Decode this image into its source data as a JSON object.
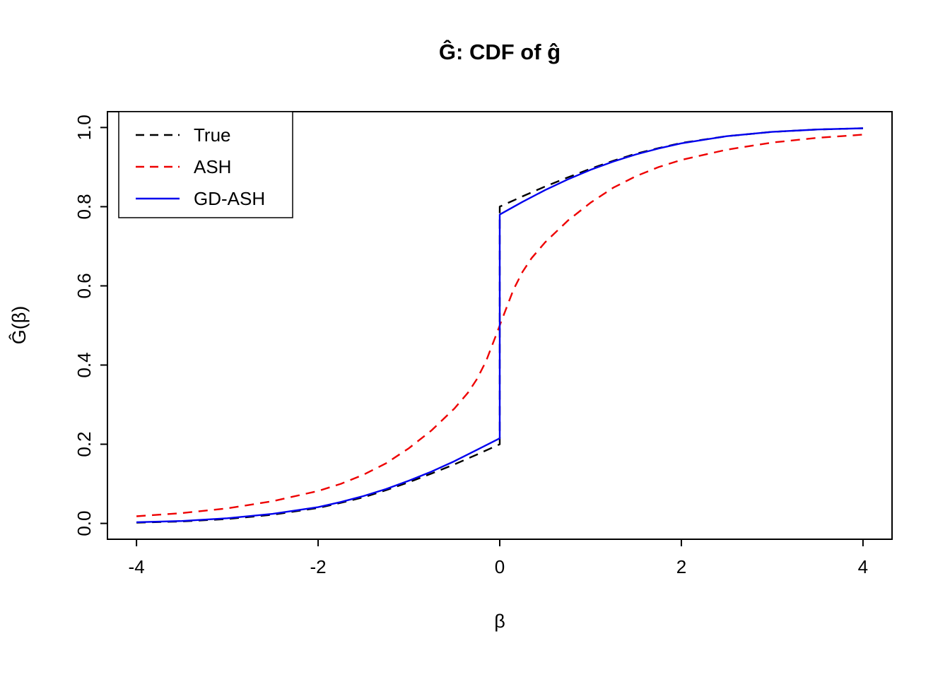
{
  "chart_data": {
    "type": "line",
    "title": "Ĝ: CDF of ĝ",
    "xlabel": "β",
    "ylabel": "Ĝ(β)",
    "xlim": [
      -4,
      4
    ],
    "ylim": [
      0,
      1
    ],
    "xticks": [
      -4,
      -2,
      0,
      2,
      4
    ],
    "xtick_labels": [
      "-4",
      "-2",
      "0",
      "2",
      "4"
    ],
    "yticks": [
      0.0,
      0.2,
      0.4,
      0.6,
      0.8,
      1.0
    ],
    "ytick_labels": [
      "0.0",
      "0.2",
      "0.4",
      "0.6",
      "0.8",
      "1.0"
    ],
    "grid": false,
    "legend_position": "top-left",
    "background_color": "#ffffff",
    "frame_color": "#000000",
    "series": [
      {
        "name": "True",
        "color": "#000000",
        "style": "dashed",
        "points": [
          [
            -4,
            0.002
          ],
          [
            -3.5,
            0.005
          ],
          [
            -3,
            0.011
          ],
          [
            -2.5,
            0.022
          ],
          [
            -2,
            0.039
          ],
          [
            -1.75,
            0.052
          ],
          [
            -1.5,
            0.066
          ],
          [
            -1.25,
            0.084
          ],
          [
            -1,
            0.104
          ],
          [
            -0.75,
            0.126
          ],
          [
            -0.5,
            0.149
          ],
          [
            -0.25,
            0.174
          ],
          [
            0,
            0.2
          ],
          [
            0,
            0.8
          ],
          [
            0.25,
            0.826
          ],
          [
            0.5,
            0.851
          ],
          [
            0.75,
            0.874
          ],
          [
            1,
            0.896
          ],
          [
            1.25,
            0.916
          ],
          [
            1.5,
            0.934
          ],
          [
            1.75,
            0.948
          ],
          [
            2,
            0.961
          ],
          [
            2.5,
            0.978
          ],
          [
            3,
            0.989
          ],
          [
            3.5,
            0.995
          ],
          [
            4,
            0.998
          ]
        ]
      },
      {
        "name": "ASH",
        "color": "#ee0000",
        "style": "dashed",
        "points": [
          [
            -4,
            0.018
          ],
          [
            -3.5,
            0.026
          ],
          [
            -3,
            0.038
          ],
          [
            -2.5,
            0.056
          ],
          [
            -2,
            0.082
          ],
          [
            -1.75,
            0.1
          ],
          [
            -1.5,
            0.123
          ],
          [
            -1.25,
            0.152
          ],
          [
            -1,
            0.19
          ],
          [
            -0.75,
            0.235
          ],
          [
            -0.5,
            0.29
          ],
          [
            -0.35,
            0.33
          ],
          [
            -0.25,
            0.365
          ],
          [
            -0.15,
            0.41
          ],
          [
            -0.05,
            0.47
          ],
          [
            0,
            0.5
          ],
          [
            0.05,
            0.53
          ],
          [
            0.15,
            0.59
          ],
          [
            0.25,
            0.635
          ],
          [
            0.35,
            0.67
          ],
          [
            0.5,
            0.71
          ],
          [
            0.75,
            0.765
          ],
          [
            1,
            0.81
          ],
          [
            1.25,
            0.848
          ],
          [
            1.5,
            0.877
          ],
          [
            1.75,
            0.9
          ],
          [
            2,
            0.918
          ],
          [
            2.5,
            0.944
          ],
          [
            3,
            0.962
          ],
          [
            3.5,
            0.974
          ],
          [
            4,
            0.982
          ]
        ]
      },
      {
        "name": "GD-ASH",
        "color": "#0000ee",
        "style": "solid",
        "points": [
          [
            -4,
            0.003
          ],
          [
            -3.5,
            0.006
          ],
          [
            -3,
            0.013
          ],
          [
            -2.5,
            0.024
          ],
          [
            -2,
            0.041
          ],
          [
            -1.75,
            0.054
          ],
          [
            -1.5,
            0.069
          ],
          [
            -1.25,
            0.087
          ],
          [
            -1,
            0.108
          ],
          [
            -0.75,
            0.131
          ],
          [
            -0.5,
            0.157
          ],
          [
            -0.25,
            0.186
          ],
          [
            0,
            0.215
          ],
          [
            0,
            0.78
          ],
          [
            0.25,
            0.812
          ],
          [
            0.5,
            0.842
          ],
          [
            0.75,
            0.869
          ],
          [
            1,
            0.893
          ],
          [
            1.25,
            0.914
          ],
          [
            1.5,
            0.932
          ],
          [
            1.75,
            0.947
          ],
          [
            2,
            0.96
          ],
          [
            2.5,
            0.978
          ],
          [
            3,
            0.989
          ],
          [
            3.5,
            0.995
          ],
          [
            4,
            0.998
          ]
        ]
      }
    ]
  }
}
